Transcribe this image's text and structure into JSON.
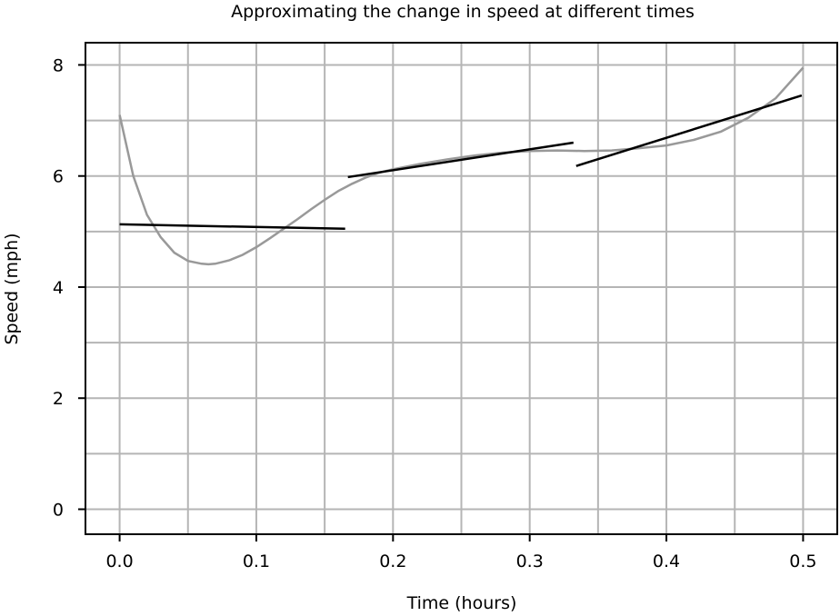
{
  "chart_data": {
    "type": "line",
    "title": "Approximating the change in speed at different times",
    "xlabel": "Time (hours)",
    "ylabel": "Speed (mph)",
    "xlim": [
      -0.025,
      0.525
    ],
    "ylim": [
      -0.45,
      8.4
    ],
    "x_ticks": [
      0.0,
      0.1,
      0.2,
      0.3,
      0.4,
      0.5
    ],
    "x_tick_labels": [
      "0.0",
      "0.1",
      "0.2",
      "0.3",
      "0.4",
      "0.5"
    ],
    "x_minor_grid": [
      0.05,
      0.15,
      0.25,
      0.35,
      0.45
    ],
    "y_ticks": [
      0,
      2,
      4,
      6,
      8
    ],
    "y_tick_labels": [
      "0",
      "2",
      "4",
      "6",
      "8"
    ],
    "y_minor_grid": [
      1,
      3,
      5,
      7
    ],
    "grid": true,
    "legend": "none",
    "colors": {
      "curve": "#999999",
      "segments": "#000000",
      "grid": "#b5b5b5"
    },
    "series": [
      {
        "kind": "curve",
        "x": [
          0.0,
          0.01,
          0.02,
          0.03,
          0.04,
          0.05,
          0.06,
          0.065,
          0.07,
          0.08,
          0.09,
          0.1,
          0.11,
          0.12,
          0.13,
          0.14,
          0.15,
          0.16,
          0.17,
          0.18,
          0.19,
          0.2,
          0.22,
          0.24,
          0.26,
          0.28,
          0.3,
          0.32,
          0.34,
          0.36,
          0.38,
          0.4,
          0.42,
          0.44,
          0.46,
          0.48,
          0.5
        ],
        "y": [
          7.1,
          6.0,
          5.3,
          4.9,
          4.62,
          4.47,
          4.42,
          4.41,
          4.42,
          4.48,
          4.58,
          4.72,
          4.88,
          5.05,
          5.22,
          5.4,
          5.57,
          5.73,
          5.86,
          5.97,
          6.06,
          6.12,
          6.22,
          6.3,
          6.37,
          6.42,
          6.45,
          6.46,
          6.45,
          6.46,
          6.5,
          6.55,
          6.65,
          6.8,
          7.05,
          7.4,
          7.95
        ]
      },
      {
        "kind": "segment",
        "x": [
          0.0,
          0.165
        ],
        "y": [
          5.13,
          5.05
        ]
      },
      {
        "kind": "segment",
        "x": [
          0.167,
          0.332
        ],
        "y": [
          5.98,
          6.6
        ]
      },
      {
        "kind": "segment",
        "x": [
          0.334,
          0.499
        ],
        "y": [
          6.18,
          7.45
        ]
      }
    ]
  }
}
